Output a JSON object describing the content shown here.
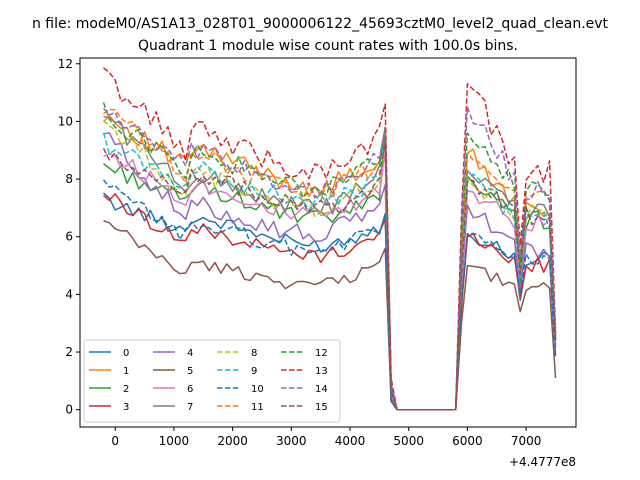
{
  "suptitle": "n file: modeM0/AS1A13_028T01_9000006122_45693cztM0_level2_quad_clean.evt",
  "chart_data": {
    "type": "line",
    "title": "Quadrant 1 module wise count rates with 100.0s bins.",
    "xlabel": "",
    "ylabel": "",
    "x_offset_label": "+4.4777e8",
    "xlim": [
      -600,
      7850
    ],
    "ylim": [
      -0.6,
      12.2
    ],
    "x_ticks": [
      0,
      1000,
      2000,
      3000,
      4000,
      5000,
      6000,
      7000
    ],
    "x_tick_labels": [
      "0",
      "1000",
      "2000",
      "3000",
      "4000",
      "5000",
      "6000",
      "7000"
    ],
    "y_ticks": [
      0,
      2,
      4,
      6,
      8,
      10,
      12
    ],
    "y_tick_labels": [
      "0",
      "2",
      "4",
      "6",
      "8",
      "10",
      "12"
    ],
    "legend_position": "lower-left",
    "x_segments": [
      {
        "from": -200,
        "to": 4700,
        "step": 100
      },
      {
        "from": 4800,
        "to": 5800,
        "step": 1000
      },
      {
        "from": 5900,
        "to": 7500,
        "step": 100
      }
    ],
    "series": [
      {
        "name": "0",
        "color": "#1f77b4",
        "dash": "solid",
        "levels": [
          7.3,
          6.2,
          6.1,
          5.2
        ],
        "seg1_end": 6.8,
        "gap": 0.3,
        "seg2_end": 2.2,
        "low_at_6900": 3.8
      },
      {
        "name": "1",
        "color": "#ff7f0e",
        "dash": "solid",
        "levels": [
          10.3,
          8.4,
          8.9,
          7.0
        ],
        "seg1_end": 9.8,
        "gap": 0.8,
        "seg2_end": 2.6,
        "low_at_6900": 4.9
      },
      {
        "name": "2",
        "color": "#2ca02c",
        "dash": "solid",
        "levels": [
          8.5,
          7.2,
          8.1,
          6.6
        ],
        "seg1_end": 9.7,
        "gap": 0.7,
        "seg2_end": 2.4,
        "low_at_6900": 4.3
      },
      {
        "name": "3",
        "color": "#d62728",
        "dash": "solid",
        "levels": [
          7.5,
          5.8,
          6.0,
          5.0
        ],
        "seg1_end": 6.6,
        "gap": 0.4,
        "seg2_end": 1.9,
        "low_at_6900": 3.9
      },
      {
        "name": "4",
        "color": "#9467bd",
        "dash": "solid",
        "levels": [
          9.6,
          6.6,
          7.1,
          5.6
        ],
        "seg1_end": 7.8,
        "gap": 0.5,
        "seg2_end": 2.0,
        "low_at_6900": 4.1
      },
      {
        "name": "5",
        "color": "#8c564b",
        "dash": "solid",
        "levels": [
          6.5,
          4.7,
          5.0,
          4.2
        ],
        "seg1_end": 5.6,
        "gap": 0.3,
        "seg2_end": 1.1,
        "low_at_6900": 3.4
      },
      {
        "name": "6",
        "color": "#e377c2",
        "dash": "solid",
        "levels": [
          9.0,
          7.3,
          7.6,
          6.4
        ],
        "seg1_end": 9.0,
        "gap": 0.6,
        "seg2_end": 2.3,
        "low_at_6900": 4.6
      },
      {
        "name": "7",
        "color": "#7f7f7f",
        "dash": "solid",
        "levels": [
          10.3,
          7.6,
          8.3,
          6.9
        ],
        "seg1_end": 9.6,
        "gap": 0.7,
        "seg2_end": 2.5,
        "low_at_6900": 4.9
      },
      {
        "name": "8",
        "color": "#bcbd22",
        "dash": "dashed",
        "levels": [
          10.0,
          7.6,
          8.0,
          6.7
        ],
        "seg1_end": 9.2,
        "gap": 0.7,
        "seg2_end": 2.4,
        "low_at_6900": 4.7
      },
      {
        "name": "9",
        "color": "#17becf",
        "dash": "dashed",
        "levels": [
          9.3,
          7.8,
          8.1,
          6.6
        ],
        "seg1_end": 9.6,
        "gap": 0.6,
        "seg2_end": 2.3,
        "low_at_6900": 4.6
      },
      {
        "name": "10",
        "color": "#1f77b4",
        "dash": "dashed",
        "levels": [
          7.8,
          6.0,
          6.1,
          5.3
        ],
        "seg1_end": 6.7,
        "gap": 0.3,
        "seg2_end": 1.8,
        "low_at_6900": 4.0
      },
      {
        "name": "11",
        "color": "#ff7f0e",
        "dash": "dashed",
        "levels": [
          10.5,
          8.2,
          8.9,
          7.4
        ],
        "seg1_end": 9.8,
        "gap": 0.9,
        "seg2_end": 2.6,
        "low_at_6900": 5.0
      },
      {
        "name": "12",
        "color": "#2ca02c",
        "dash": "dashed",
        "levels": [
          10.3,
          8.3,
          9.6,
          7.6
        ],
        "seg1_end": 9.7,
        "gap": 0.9,
        "seg2_end": 2.6,
        "low_at_6900": 5.1
      },
      {
        "name": "13",
        "color": "#d62728",
        "dash": "dashed",
        "levels": [
          11.6,
          9.0,
          11.3,
          8.3
        ],
        "seg1_end": 10.6,
        "gap": 1.1,
        "seg2_end": 2.7,
        "low_at_6900": 5.7
      },
      {
        "name": "14",
        "color": "#9467bd",
        "dash": "dashed",
        "levels": [
          10.5,
          8.3,
          10.5,
          7.6
        ],
        "seg1_end": 9.8,
        "gap": 0.9,
        "seg2_end": 2.6,
        "low_at_6900": 5.3
      },
      {
        "name": "15",
        "color": "#8c564b",
        "dash": "dashed",
        "levels": [
          8.8,
          7.6,
          7.9,
          6.7
        ],
        "seg1_end": 9.3,
        "gap": 0.7,
        "seg2_end": 2.4,
        "low_at_6900": 4.7
      }
    ]
  }
}
